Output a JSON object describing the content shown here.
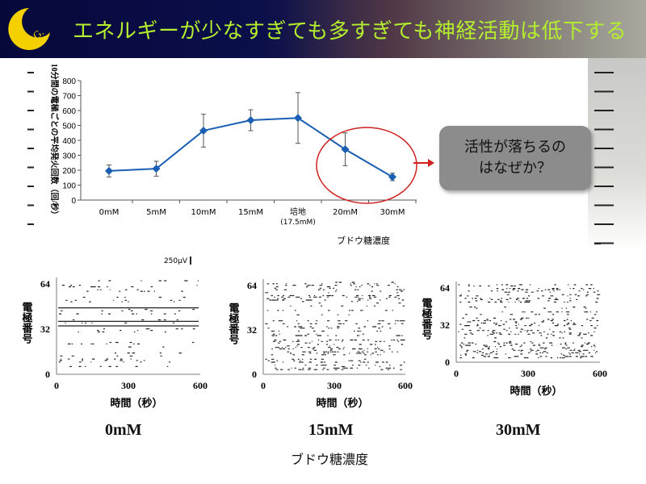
{
  "slide": {
    "title": "エネルギーが少なすぎても多すぎても神経活動は低下する",
    "logo_text": "K.G.",
    "callout": "活性が落ちるの\nはなぜか？",
    "bottom_axis_label": "ブドウ糖濃度"
  },
  "colors": {
    "title": "#b4ee2e",
    "logo": "#f4d000",
    "line": "#1a5fb4",
    "highlight": "#d02020"
  },
  "chart_data": [
    {
      "type": "line",
      "categories": [
        "0mM",
        "5mM",
        "10mM",
        "15mM",
        "培地 (17.5mM)",
        "20mM",
        "30mM"
      ],
      "values": [
        195,
        210,
        465,
        535,
        550,
        340,
        155
      ],
      "errors": [
        40,
        50,
        110,
        70,
        170,
        110,
        25
      ],
      "ylabel": "10分間の電極ごとの平均発火回数（回/秒）",
      "xlabel": "ブドウ糖濃度",
      "ylim": [
        0,
        800
      ],
      "yticks": [
        0,
        100,
        200,
        300,
        400,
        500,
        600,
        700,
        800
      ],
      "grid": false,
      "annotation": "20mM–30mM circled; arrow to callout",
      "scale_label": "250μV"
    },
    {
      "type": "scatter",
      "name": "raster",
      "panels": [
        "0mM",
        "15mM",
        "30mM"
      ],
      "xlabel": "時間（秒）",
      "ylabel": "電極番号",
      "xticks": [
        0,
        300,
        600
      ],
      "yticks": [
        0,
        32,
        64
      ],
      "xlim": [
        0,
        600
      ],
      "ylim": [
        0,
        64
      ]
    }
  ]
}
